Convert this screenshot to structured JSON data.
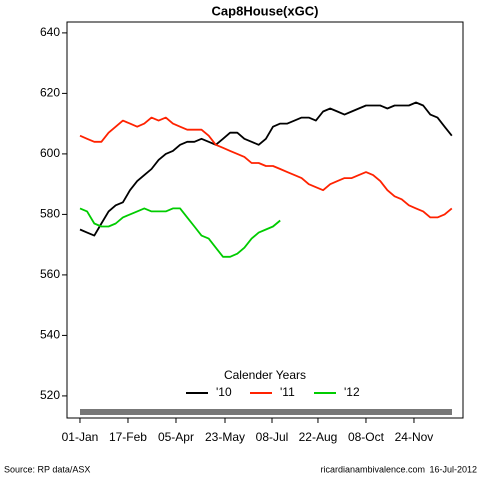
{
  "chart_data": {
    "type": "line",
    "title": "Cap8House(xGC)",
    "x": [
      0,
      7,
      14,
      21,
      28,
      35,
      42,
      49,
      56,
      63,
      70,
      77,
      84,
      91,
      98,
      105,
      112,
      119,
      126,
      133,
      140,
      147,
      154,
      161,
      168,
      175,
      182,
      189,
      196,
      203,
      210,
      217,
      224,
      231,
      238,
      245,
      252,
      259,
      266,
      273,
      280,
      287,
      294,
      301,
      308,
      315,
      322,
      329,
      336,
      343,
      350,
      357,
      364
    ],
    "series": [
      {
        "name": "'10",
        "color": "#000000",
        "values": [
          575,
          574,
          573,
          577,
          581,
          583,
          584,
          588,
          591,
          593,
          595,
          598,
          600,
          601,
          603,
          604,
          604,
          605,
          604,
          603,
          605,
          607,
          607,
          605,
          604,
          603,
          605,
          609,
          610,
          610,
          611,
          612,
          612,
          611,
          614,
          615,
          614,
          613,
          614,
          615,
          616,
          616,
          616,
          615,
          616,
          616,
          616,
          617,
          616,
          613,
          612,
          609,
          606
        ]
      },
      {
        "name": "'11",
        "color": "#ff2200",
        "values": [
          606,
          605,
          604,
          604,
          607,
          609,
          611,
          610,
          609,
          610,
          612,
          611,
          612,
          610,
          609,
          608,
          608,
          608,
          606,
          603,
          602,
          601,
          600,
          599,
          597,
          597,
          596,
          596,
          595,
          594,
          593,
          592,
          590,
          589,
          588,
          590,
          591,
          592,
          592,
          593,
          594,
          593,
          591,
          588,
          586,
          585,
          583,
          582,
          581,
          579,
          579,
          580,
          582
        ]
      },
      {
        "name": "'12",
        "color": "#00cc00",
        "values": [
          582,
          581,
          577,
          576,
          576,
          577,
          579,
          580,
          581,
          582,
          581,
          581,
          581,
          582,
          582,
          579,
          576,
          573,
          572,
          569,
          566,
          566,
          567,
          569,
          572,
          574,
          575,
          576,
          578,
          null,
          null,
          null,
          null,
          null,
          null,
          null,
          null,
          null,
          null,
          null,
          null,
          null,
          null,
          null,
          null,
          null,
          null,
          null,
          null,
          null,
          null,
          null,
          null
        ]
      }
    ],
    "xlim": [
      -12.7,
      375
    ],
    "xticks": [
      {
        "value": 0,
        "label": "01-Jan"
      },
      {
        "value": 47,
        "label": "17-Feb"
      },
      {
        "value": 94,
        "label": "05-Apr"
      },
      {
        "value": 142,
        "label": "23-May"
      },
      {
        "value": 188,
        "label": "08-Jul"
      },
      {
        "value": 233,
        "label": "22-Aug"
      },
      {
        "value": 280,
        "label": "08-Oct"
      },
      {
        "value": 327,
        "label": "24-Nov"
      }
    ],
    "ylim": [
      512.7,
      643.6
    ],
    "yticks": [
      520,
      540,
      560,
      580,
      600,
      620,
      640
    ],
    "legend_title": "Calender Years",
    "legend": "bottom",
    "source": "Source: RP data/ASX",
    "website": "ricardianambivalence.com",
    "date": "16-Jul-2012"
  }
}
